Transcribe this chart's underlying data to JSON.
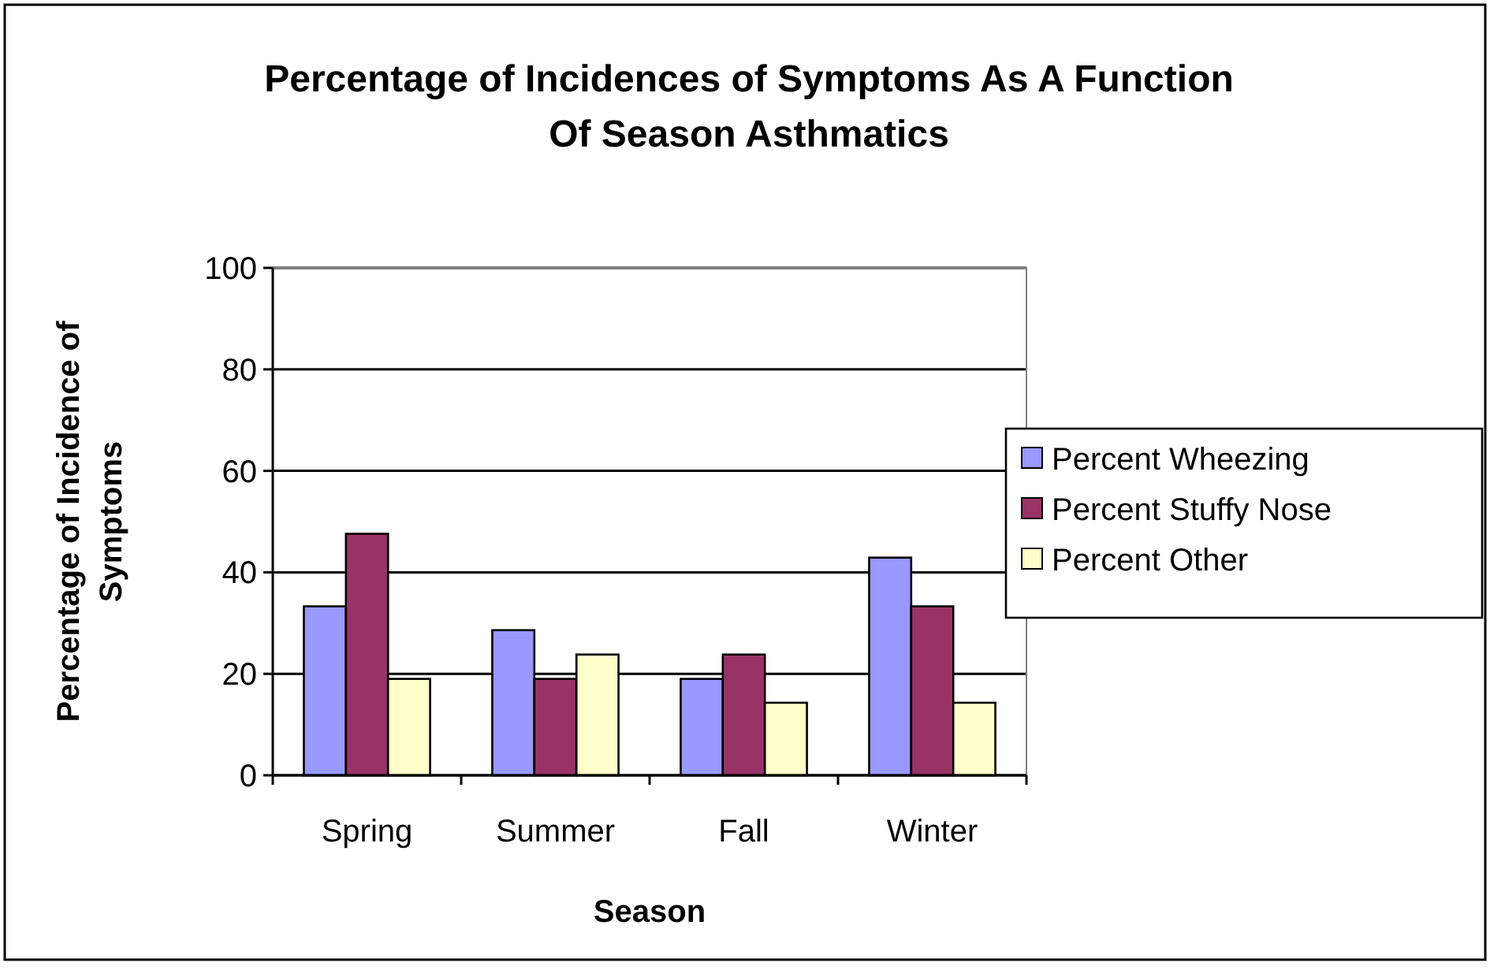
{
  "chart_data": {
    "type": "bar",
    "title": "Percentage of Incidences of Symptoms As A Function Of Season Asthmatics",
    "xlabel": "Season",
    "ylabel": "Percentage of Incidence of Symptoms",
    "categories": [
      "Spring",
      "Summer",
      "Fall",
      "Winter"
    ],
    "series": [
      {
        "name": "Percent Wheezing",
        "color": "#9999ff",
        "values": [
          33.3,
          28.6,
          19,
          42.9
        ]
      },
      {
        "name": "Percent Stuffy Nose",
        "color": "#993366",
        "values": [
          47.6,
          19,
          23.8,
          33.3
        ]
      },
      {
        "name": "Percent Other",
        "color": "#ffffcc",
        "values": [
          19,
          23.8,
          14.3,
          14.3
        ]
      }
    ],
    "ylim": [
      0,
      100
    ],
    "yticks": [
      0,
      20,
      40,
      60,
      80,
      100
    ],
    "grid": "y",
    "legend": "right"
  }
}
